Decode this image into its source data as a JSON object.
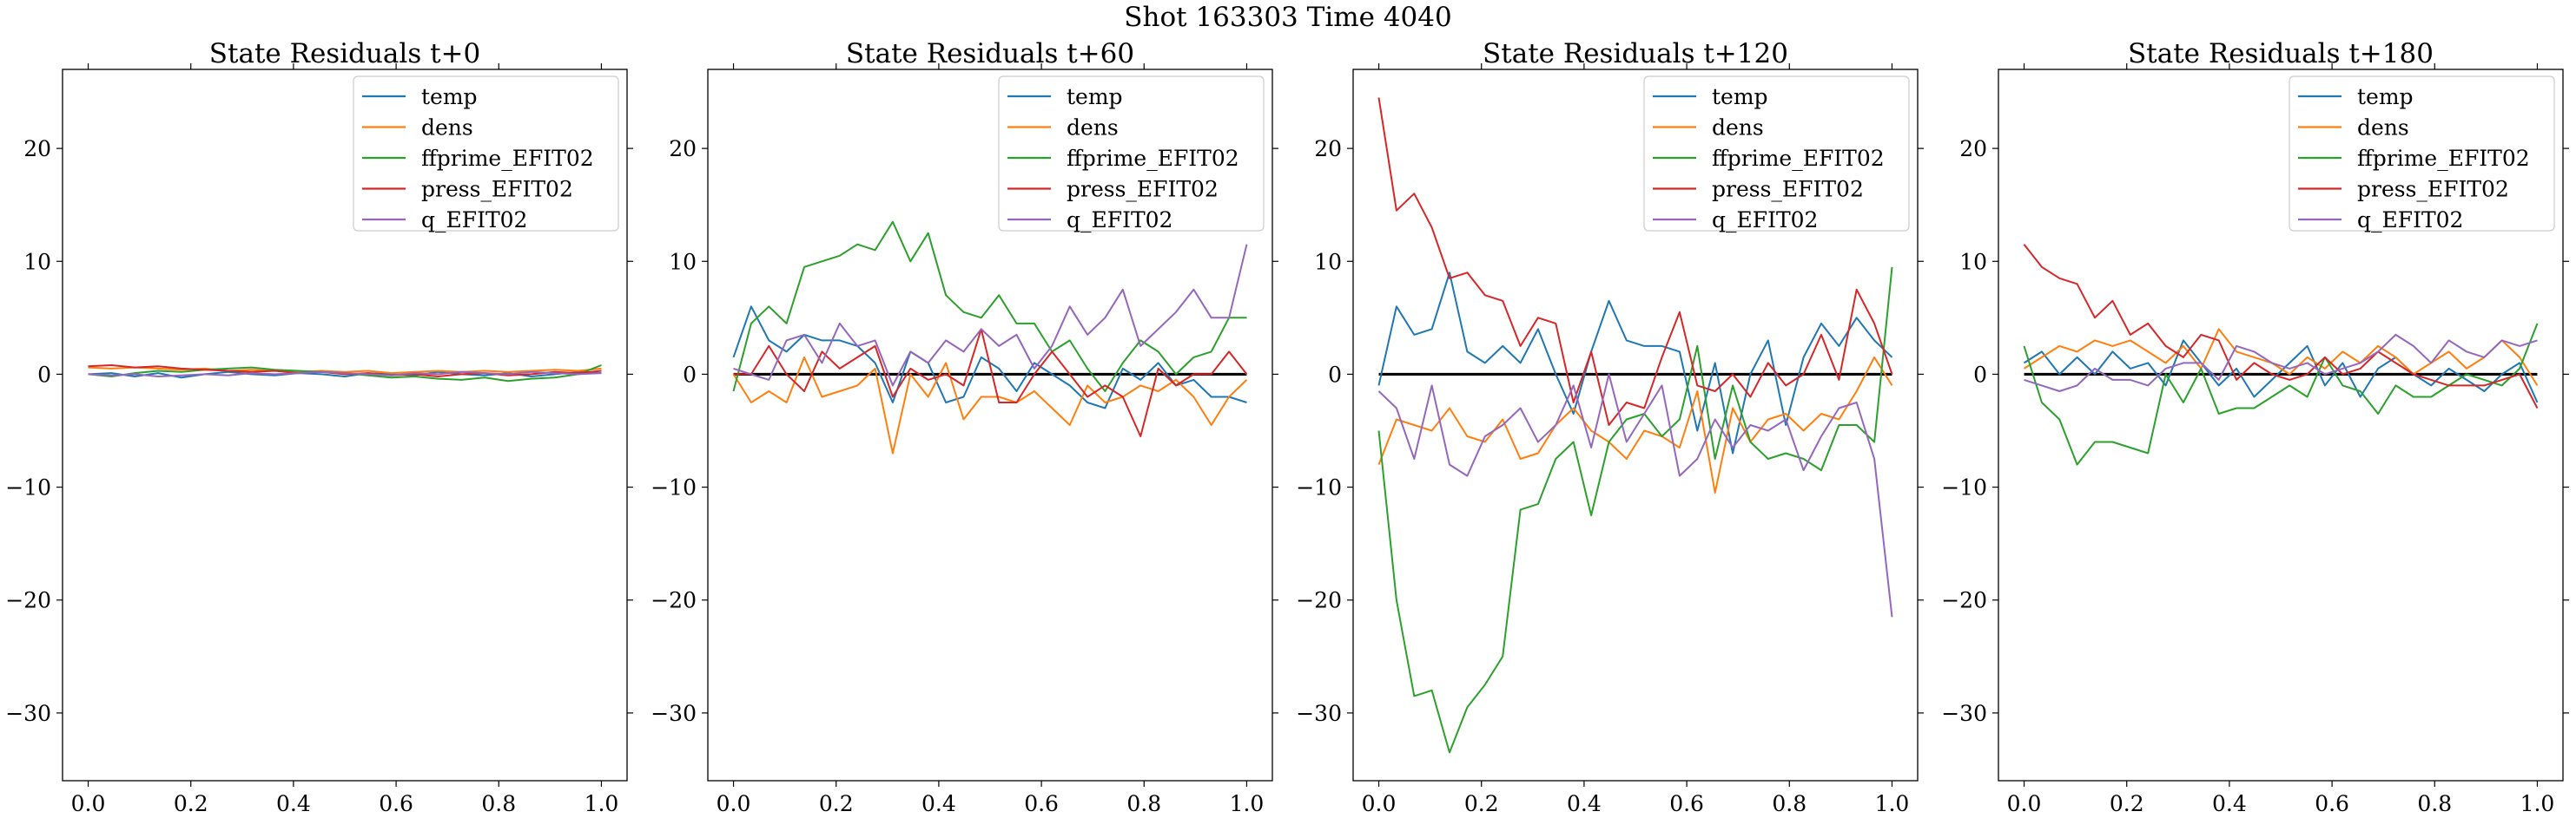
{
  "figure": {
    "suptitle": "Shot 163303   Time 4040",
    "colors": {
      "temp": "#1f77b4",
      "dens": "#ff7f0e",
      "ffprime_EFIT02": "#2ca02c",
      "press_EFIT02": "#d62728",
      "q_EFIT02": "#9467bd",
      "zero_line": "#000000"
    }
  },
  "chart_data": [
    {
      "type": "line",
      "title": "State Residuals t+0",
      "xlabel": "",
      "ylabel": "",
      "xlim": [
        -0.05,
        1.05
      ],
      "ylim": [
        -36,
        27
      ],
      "xticks": [
        "0.0",
        "0.2",
        "0.4",
        "0.6",
        "0.8",
        "1.0"
      ],
      "yticks": [
        "20",
        "10",
        "0",
        "−10",
        "−20",
        "−30"
      ],
      "grid": false,
      "legend": "top-right",
      "zero_line": false,
      "x": [
        0.0,
        0.0455,
        0.0909,
        0.1364,
        0.1818,
        0.2273,
        0.2727,
        0.3182,
        0.3636,
        0.4091,
        0.4545,
        0.5,
        0.5455,
        0.5909,
        0.6364,
        0.6818,
        0.7273,
        0.7727,
        0.8182,
        0.8636,
        0.9091,
        0.9545,
        1.0
      ],
      "series": [
        {
          "name": "temp",
          "values": [
            0.0,
            0.1,
            -0.2,
            0.1,
            -0.3,
            0.0,
            0.2,
            0.0,
            -0.1,
            0.1,
            0.0,
            -0.2,
            0.1,
            0.0,
            -0.1,
            0.2,
            0.0,
            -0.1,
            0.1,
            -0.2,
            0.0,
            0.2,
            0.1
          ]
        },
        {
          "name": "dens",
          "values": [
            0.6,
            0.5,
            0.6,
            0.5,
            0.4,
            0.5,
            0.3,
            0.4,
            0.3,
            0.2,
            0.3,
            0.2,
            0.3,
            0.1,
            0.2,
            0.3,
            0.2,
            0.3,
            0.2,
            0.3,
            0.4,
            0.3,
            0.5
          ]
        },
        {
          "name": "ffprime_EFIT02",
          "values": [
            0.0,
            -0.2,
            0.1,
            0.3,
            0.2,
            0.4,
            0.5,
            0.6,
            0.4,
            0.3,
            0.2,
            0.1,
            -0.1,
            -0.3,
            -0.2,
            -0.4,
            -0.5,
            -0.3,
            -0.6,
            -0.4,
            -0.3,
            0.0,
            0.8
          ]
        },
        {
          "name": "press_EFIT02",
          "values": [
            0.7,
            0.8,
            0.6,
            0.7,
            0.5,
            0.4,
            0.3,
            0.2,
            0.3,
            0.1,
            0.2,
            0.0,
            0.1,
            -0.1,
            0.0,
            -0.2,
            0.0,
            0.1,
            -0.1,
            0.0,
            0.2,
            0.1,
            0.3
          ]
        },
        {
          "name": "q_EFIT02",
          "values": [
            0.0,
            -0.1,
            0.0,
            -0.2,
            -0.1,
            0.0,
            -0.1,
            0.1,
            0.0,
            0.1,
            0.2,
            0.1,
            0.0,
            -0.1,
            0.1,
            0.0,
            0.2,
            0.1,
            0.0,
            0.2,
            0.1,
            0.0,
            0.1
          ]
        }
      ]
    },
    {
      "type": "line",
      "title": "State Residuals t+60",
      "xlabel": "",
      "ylabel": "",
      "xlim": [
        -0.05,
        1.05
      ],
      "ylim": [
        -36,
        27
      ],
      "xticks": [
        "0.0",
        "0.2",
        "0.4",
        "0.6",
        "0.8",
        "1.0"
      ],
      "yticks": [
        "20",
        "10",
        "0",
        "−10",
        "−20",
        "−30"
      ],
      "grid": false,
      "legend": "top-right",
      "zero_line": true,
      "x": [
        0.0,
        0.0345,
        0.069,
        0.1034,
        0.1379,
        0.1724,
        0.2069,
        0.2414,
        0.2759,
        0.3103,
        0.3448,
        0.3793,
        0.4138,
        0.4483,
        0.4828,
        0.5172,
        0.5517,
        0.5862,
        0.6207,
        0.6552,
        0.6897,
        0.7241,
        0.7586,
        0.7931,
        0.8276,
        0.8621,
        0.8966,
        0.931,
        0.9655,
        1.0
      ],
      "series": [
        {
          "name": "temp",
          "values": [
            1.5,
            6.0,
            3.0,
            2.0,
            3.5,
            3.0,
            3.0,
            2.5,
            1.0,
            -2.5,
            2.0,
            1.0,
            -2.5,
            -2.0,
            1.5,
            0.5,
            -1.5,
            1.0,
            0.0,
            -1.0,
            -2.5,
            -3.0,
            0.5,
            -0.5,
            1.0,
            -1.0,
            -0.5,
            -2.0,
            -2.0,
            -2.5
          ]
        },
        {
          "name": "dens",
          "values": [
            0.0,
            -2.5,
            -1.5,
            -2.5,
            1.5,
            -2.0,
            -1.5,
            -1.0,
            0.5,
            -7.0,
            0.0,
            -2.0,
            1.0,
            -4.0,
            -2.0,
            -2.0,
            -2.5,
            -1.5,
            -3.0,
            -4.5,
            -1.0,
            -2.5,
            -2.0,
            -1.0,
            -1.5,
            -0.5,
            -2.0,
            -4.5,
            -2.0,
            -0.5
          ]
        },
        {
          "name": "ffprime_EFIT02",
          "values": [
            -1.5,
            4.5,
            6.0,
            4.5,
            9.5,
            10.0,
            10.5,
            11.5,
            11.0,
            13.5,
            10.0,
            12.5,
            7.0,
            5.5,
            5.0,
            7.0,
            4.5,
            4.5,
            2.0,
            3.0,
            0.5,
            -1.5,
            1.0,
            3.0,
            2.0,
            0.0,
            1.5,
            2.0,
            5.0,
            5.0
          ]
        },
        {
          "name": "press_EFIT02",
          "values": [
            0.0,
            0.0,
            2.5,
            0.0,
            -1.5,
            2.0,
            0.5,
            1.5,
            2.5,
            -2.0,
            0.5,
            -0.5,
            0.0,
            -1.0,
            4.0,
            -2.5,
            -2.5,
            0.0,
            2.0,
            0.0,
            -2.0,
            -1.0,
            -2.0,
            -5.5,
            0.5,
            -1.0,
            0.0,
            0.0,
            2.0,
            0.0
          ]
        },
        {
          "name": "q_EFIT02",
          "values": [
            0.5,
            0.0,
            -0.5,
            3.0,
            3.5,
            1.0,
            4.5,
            2.5,
            3.0,
            -1.0,
            2.0,
            1.0,
            3.0,
            2.0,
            4.0,
            2.5,
            3.5,
            0.5,
            2.5,
            6.0,
            3.5,
            5.0,
            7.5,
            2.5,
            4.0,
            5.5,
            7.5,
            5.0,
            5.0,
            11.5
          ]
        }
      ]
    },
    {
      "type": "line",
      "title": "State Residuals t+120",
      "xlabel": "",
      "ylabel": "",
      "xlim": [
        -0.05,
        1.05
      ],
      "ylim": [
        -36,
        27
      ],
      "xticks": [
        "0.0",
        "0.2",
        "0.4",
        "0.6",
        "0.8",
        "1.0"
      ],
      "yticks": [
        "20",
        "10",
        "0",
        "−10",
        "−20",
        "−30"
      ],
      "grid": false,
      "legend": "top-right",
      "zero_line": true,
      "x": [
        0.0,
        0.0345,
        0.069,
        0.1034,
        0.1379,
        0.1724,
        0.2069,
        0.2414,
        0.2759,
        0.3103,
        0.3448,
        0.3793,
        0.4138,
        0.4483,
        0.4828,
        0.5172,
        0.5517,
        0.5862,
        0.6207,
        0.6552,
        0.6897,
        0.7241,
        0.7586,
        0.7931,
        0.8276,
        0.8621,
        0.8966,
        0.931,
        0.9655,
        1.0
      ],
      "series": [
        {
          "name": "temp",
          "values": [
            -1.0,
            6.0,
            3.5,
            4.0,
            9.0,
            2.0,
            1.0,
            2.5,
            1.0,
            4.0,
            0.0,
            -3.5,
            2.0,
            6.5,
            3.0,
            2.5,
            2.5,
            2.0,
            -5.0,
            1.0,
            -7.0,
            0.0,
            3.0,
            -4.5,
            1.5,
            4.5,
            2.5,
            5.0,
            3.0,
            1.5
          ]
        },
        {
          "name": "dens",
          "values": [
            -8.0,
            -4.0,
            -4.5,
            -5.0,
            -3.0,
            -5.5,
            -6.0,
            -4.0,
            -7.5,
            -7.0,
            -4.5,
            -3.0,
            -5.0,
            -6.0,
            -7.5,
            -5.0,
            -5.5,
            -6.5,
            -1.5,
            -10.5,
            -3.0,
            -6.0,
            -4.0,
            -3.5,
            -5.0,
            -3.5,
            -4.0,
            -1.5,
            1.5,
            -1.0
          ]
        },
        {
          "name": "ffprime_EFIT02",
          "values": [
            -5.0,
            -20.0,
            -28.5,
            -28.0,
            -33.5,
            -29.5,
            -27.5,
            -25.0,
            -12.0,
            -11.5,
            -7.5,
            -6.0,
            -12.5,
            -6.0,
            -4.0,
            -3.5,
            -5.5,
            -4.0,
            2.5,
            -7.5,
            -1.0,
            -6.0,
            -7.5,
            -7.0,
            -7.5,
            -8.5,
            -4.5,
            -4.5,
            -6.0,
            9.5
          ]
        },
        {
          "name": "press_EFIT02",
          "values": [
            24.5,
            14.5,
            16.0,
            13.0,
            8.5,
            9.0,
            7.0,
            6.5,
            2.5,
            5.0,
            4.5,
            -2.5,
            2.0,
            -4.5,
            -2.5,
            -3.0,
            1.5,
            5.5,
            -1.0,
            -1.5,
            0.0,
            -2.0,
            1.0,
            -1.0,
            0.0,
            3.5,
            -0.5,
            7.5,
            4.5,
            0.0
          ]
        },
        {
          "name": "q_EFIT02",
          "values": [
            -1.5,
            -3.0,
            -7.5,
            -1.0,
            -8.0,
            -9.0,
            -5.5,
            -4.5,
            -3.0,
            -6.0,
            -4.5,
            -1.0,
            -6.5,
            0.0,
            -6.0,
            -3.5,
            -1.0,
            -9.0,
            -7.5,
            -4.0,
            -6.5,
            -4.5,
            -5.0,
            -4.0,
            -8.5,
            -5.5,
            -3.0,
            -2.5,
            -7.5,
            -21.5
          ]
        }
      ]
    },
    {
      "type": "line",
      "title": "State Residuals t+180",
      "xlabel": "",
      "ylabel": "",
      "xlim": [
        -0.05,
        1.05
      ],
      "ylim": [
        -36,
        27
      ],
      "xticks": [
        "0.0",
        "0.2",
        "0.4",
        "0.6",
        "0.8",
        "1.0"
      ],
      "yticks": [
        "20",
        "10",
        "0",
        "−10",
        "−20",
        "−30"
      ],
      "grid": false,
      "legend": "top-right",
      "zero_line": true,
      "x": [
        0.0,
        0.0345,
        0.069,
        0.1034,
        0.1379,
        0.1724,
        0.2069,
        0.2414,
        0.2759,
        0.3103,
        0.3448,
        0.3793,
        0.4138,
        0.4483,
        0.4828,
        0.5172,
        0.5517,
        0.5862,
        0.6207,
        0.6552,
        0.6897,
        0.7241,
        0.7586,
        0.7931,
        0.8276,
        0.8621,
        0.8966,
        0.931,
        0.9655,
        1.0
      ],
      "series": [
        {
          "name": "temp",
          "values": [
            1.0,
            2.0,
            0.0,
            1.5,
            0.0,
            2.0,
            0.5,
            1.0,
            -1.0,
            3.0,
            1.0,
            -1.0,
            0.5,
            -2.0,
            -0.5,
            1.0,
            2.5,
            -1.0,
            1.0,
            -2.0,
            0.5,
            1.5,
            0.0,
            -1.0,
            0.5,
            -0.5,
            -1.5,
            0.0,
            1.0,
            -2.5
          ]
        },
        {
          "name": "dens",
          "values": [
            0.5,
            1.5,
            2.5,
            2.0,
            3.0,
            2.5,
            3.0,
            2.0,
            1.0,
            2.5,
            0.5,
            4.0,
            2.0,
            1.5,
            1.0,
            0.0,
            1.5,
            0.5,
            2.0,
            1.0,
            2.5,
            1.5,
            0.0,
            1.0,
            2.0,
            0.5,
            1.5,
            3.0,
            1.5,
            -1.0
          ]
        },
        {
          "name": "ffprime_EFIT02",
          "values": [
            2.5,
            -2.5,
            -4.0,
            -8.0,
            -6.0,
            -6.0,
            -6.5,
            -7.0,
            0.0,
            -2.5,
            0.5,
            -3.5,
            -3.0,
            -3.0,
            -2.0,
            -1.0,
            -2.0,
            1.5,
            -1.0,
            -1.5,
            -3.5,
            -1.0,
            -2.0,
            -2.0,
            -1.0,
            0.0,
            -0.5,
            -1.0,
            0.5,
            4.5
          ]
        },
        {
          "name": "press_EFIT02",
          "values": [
            11.5,
            9.5,
            8.5,
            8.0,
            5.0,
            6.5,
            3.5,
            4.5,
            2.5,
            1.5,
            3.5,
            3.0,
            -0.5,
            1.0,
            0.0,
            -0.5,
            0.0,
            1.5,
            0.0,
            0.5,
            2.0,
            1.0,
            0.0,
            -0.5,
            -1.0,
            -1.0,
            -1.0,
            -0.5,
            0.0,
            -3.0
          ]
        },
        {
          "name": "q_EFIT02",
          "values": [
            -0.5,
            -1.0,
            -1.5,
            -1.0,
            0.5,
            -0.5,
            -0.5,
            -1.0,
            0.5,
            1.0,
            1.0,
            -0.5,
            2.5,
            2.0,
            1.0,
            0.5,
            1.0,
            0.0,
            0.5,
            1.0,
            2.0,
            3.5,
            2.5,
            1.0,
            3.0,
            2.0,
            1.5,
            3.0,
            2.5,
            3.0
          ]
        }
      ]
    }
  ]
}
